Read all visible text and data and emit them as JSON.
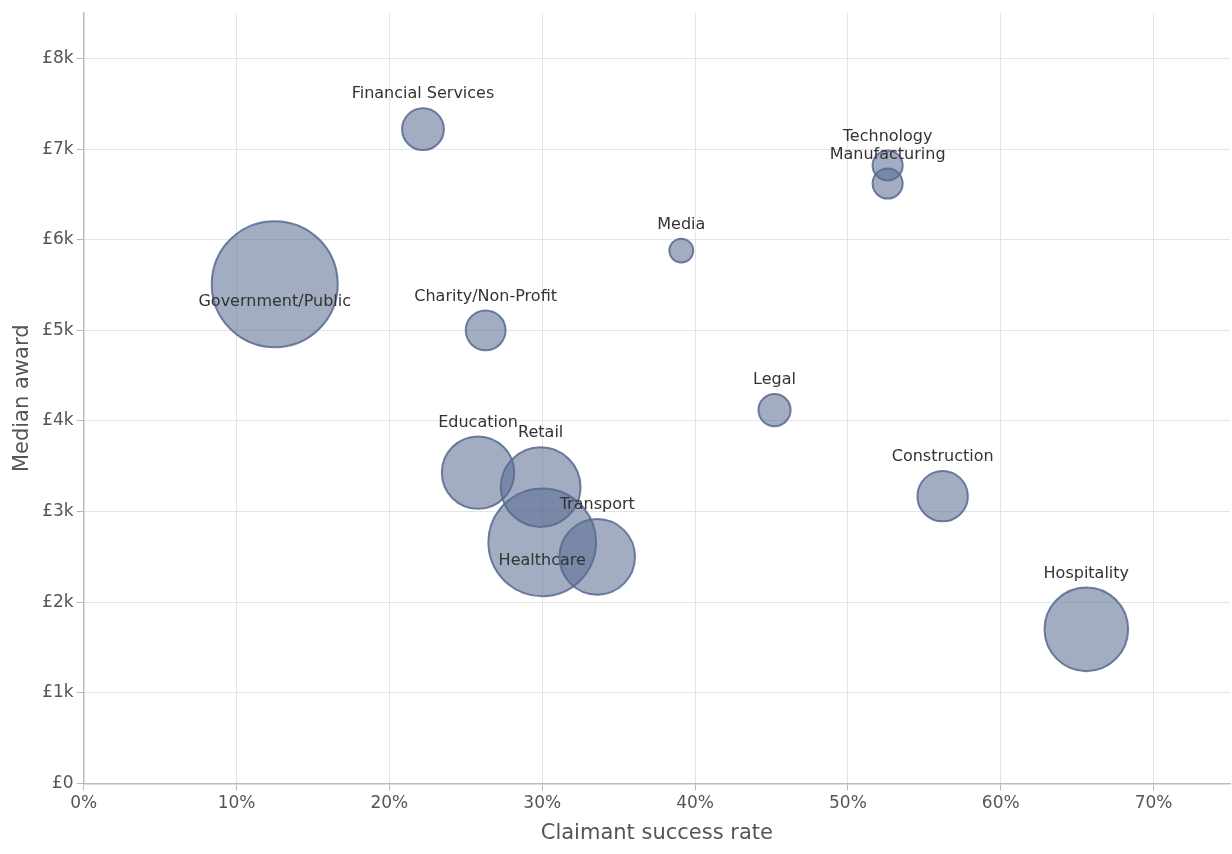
{
  "chart_data": {
    "type": "bubble",
    "xlabel": "Claimant success rate",
    "ylabel": "Median award",
    "x": [
      22.2,
      12.5,
      26.3,
      39.1,
      52.6,
      52.6,
      45.2,
      25.8,
      29.9,
      30.0,
      33.6,
      56.2,
      65.6
    ],
    "values": [
      7220,
      5510,
      5000,
      5880,
      6820,
      6620,
      4120,
      3430,
      3270,
      2660,
      2500,
      3170,
      1700
    ],
    "sizes": [
      0.11,
      1,
      0.1,
      0.036,
      0.057,
      0.057,
      0.065,
      0.33,
      0.4,
      0.73,
      0.36,
      0.16,
      0.44
    ],
    "color": "#56698f",
    "annotations": [
      {
        "text": "Financial Services",
        "x": 22.2,
        "y": 7220
      },
      {
        "text": "Government/Public",
        "x": 12.5,
        "y": 5510
      },
      {
        "text": "Charity/Non-Profit",
        "x": 26.3,
        "y": 5000
      },
      {
        "text": "Media",
        "x": 39.1,
        "y": 5880
      },
      {
        "text": "Technology",
        "x": 52.6,
        "y": 6820
      },
      {
        "text": "Manufacturing",
        "x": 52.6,
        "y": 6620
      },
      {
        "text": "Legal",
        "x": 45.2,
        "y": 4120
      },
      {
        "text": "Education",
        "x": 25.8,
        "y": 3430
      },
      {
        "text": "Retail",
        "x": 29.9,
        "y": 3270
      },
      {
        "text": "Healthcare",
        "x": 30.0,
        "y": 2660
      },
      {
        "text": "Transport",
        "x": 33.6,
        "y": 2500
      },
      {
        "text": "Construction",
        "x": 56.2,
        "y": 3170
      },
      {
        "text": "Hospitality",
        "x": 65.6,
        "y": 1700
      }
    ],
    "xlim": [
      0,
      75
    ],
    "xticks": [
      {
        "value": 0,
        "label": "0%"
      },
      {
        "value": 10,
        "label": "10%"
      },
      {
        "value": 20,
        "label": "20%"
      },
      {
        "value": 30,
        "label": "30%"
      },
      {
        "value": 40,
        "label": "40%"
      },
      {
        "value": 50,
        "label": "50%"
      },
      {
        "value": 60,
        "label": "60%"
      },
      {
        "value": 70,
        "label": "70%"
      }
    ],
    "ylim": [
      0,
      8500
    ],
    "yticks": [
      {
        "value": 0,
        "label": "£0"
      },
      {
        "value": 1000,
        "label": "£1k"
      },
      {
        "value": 2000,
        "label": "£2k"
      },
      {
        "value": 3000,
        "label": "£3k"
      },
      {
        "value": 4000,
        "label": "£4k"
      },
      {
        "value": 5000,
        "label": "£5k"
      },
      {
        "value": 6000,
        "label": "£6k"
      },
      {
        "value": 7000,
        "label": "£7k"
      },
      {
        "value": 8000,
        "label": "£8k"
      }
    ],
    "grid": true,
    "legend": false
  }
}
